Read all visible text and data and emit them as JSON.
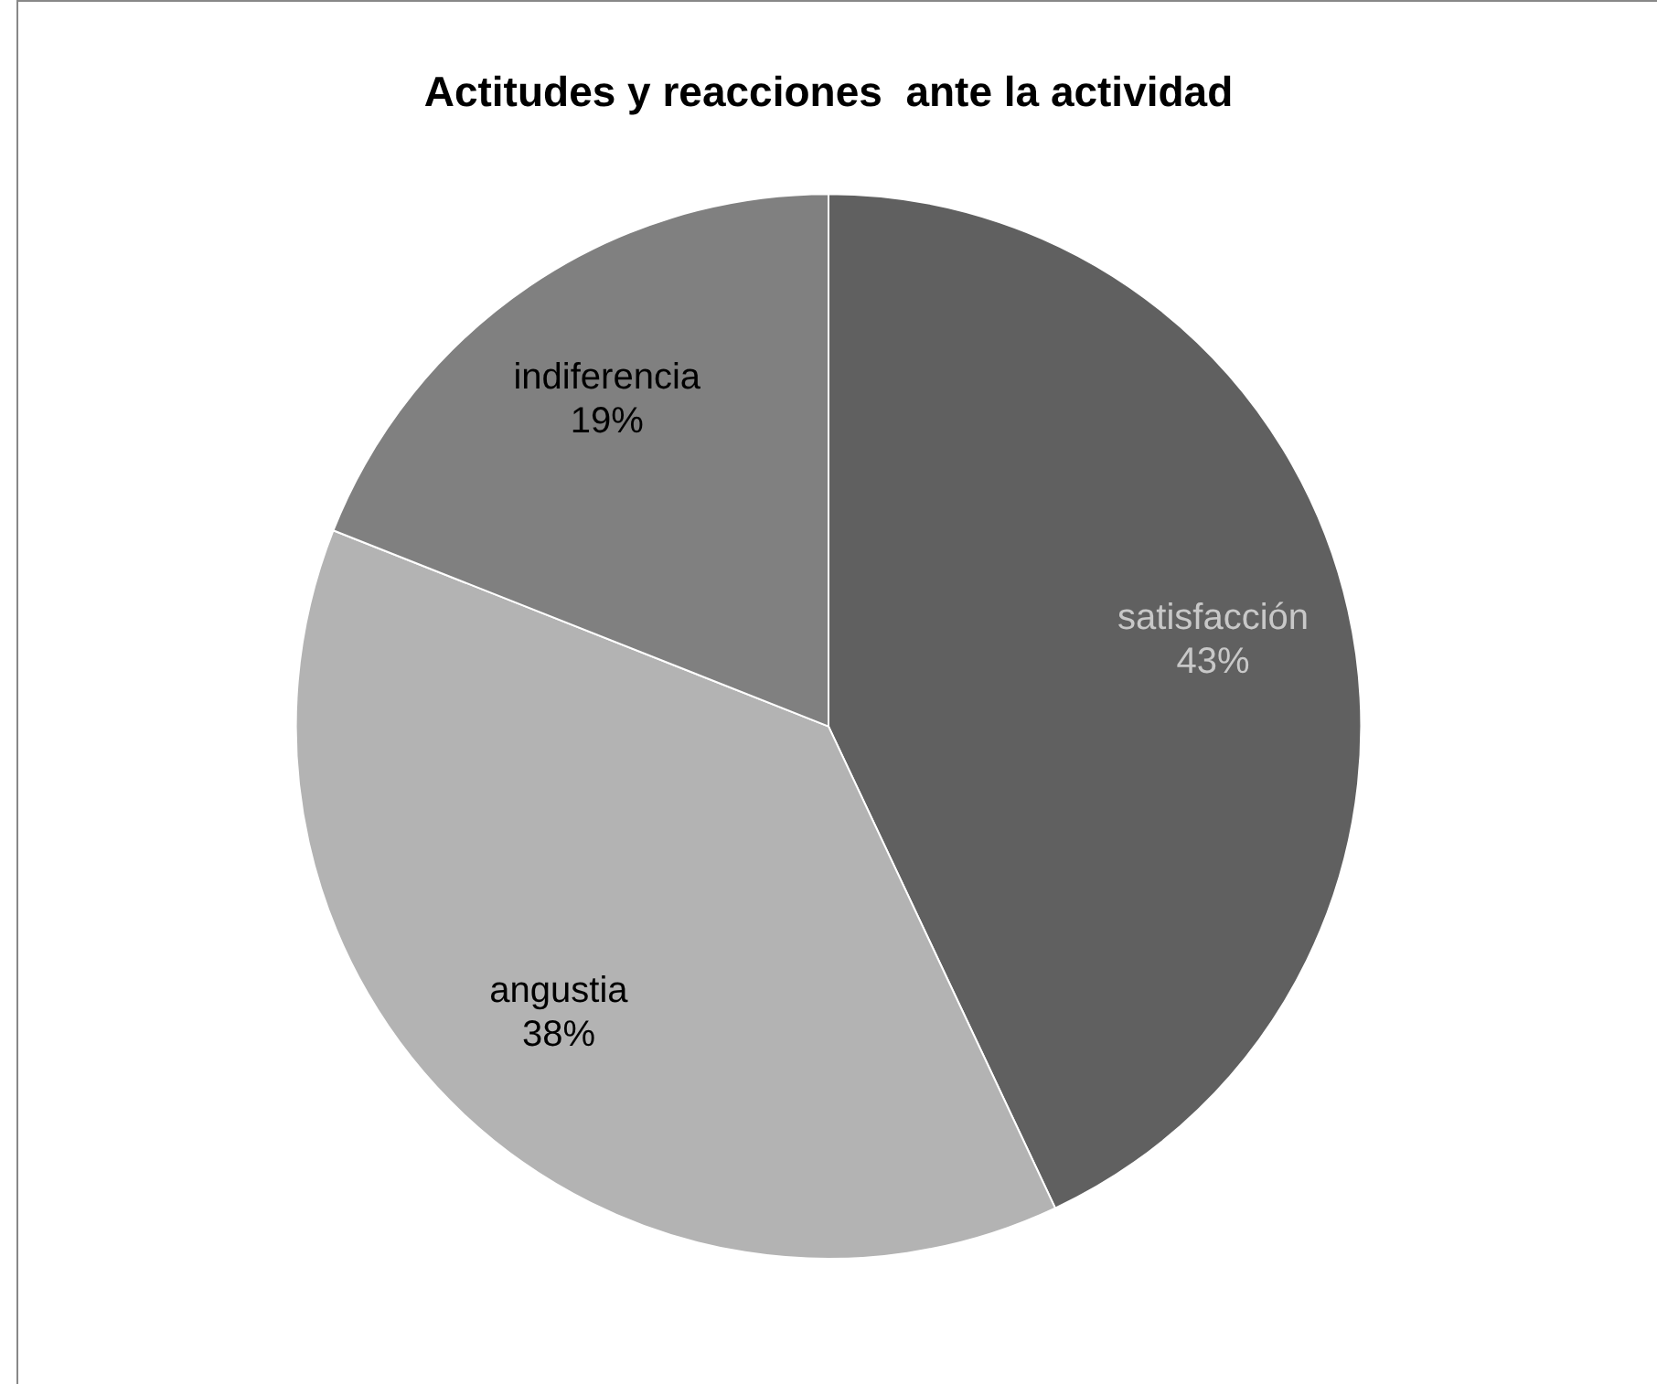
{
  "chart_data": {
    "type": "pie",
    "title": "Actitudes y reacciones  ante la actividad",
    "categories": [
      "satisfacción",
      "angustia",
      "indiferencia"
    ],
    "values": [
      43,
      38,
      19
    ],
    "colors": [
      "#606060",
      "#b3b3b3",
      "#808080"
    ],
    "value_labels": [
      "43%",
      "38%",
      "19%"
    ],
    "legend": false
  }
}
